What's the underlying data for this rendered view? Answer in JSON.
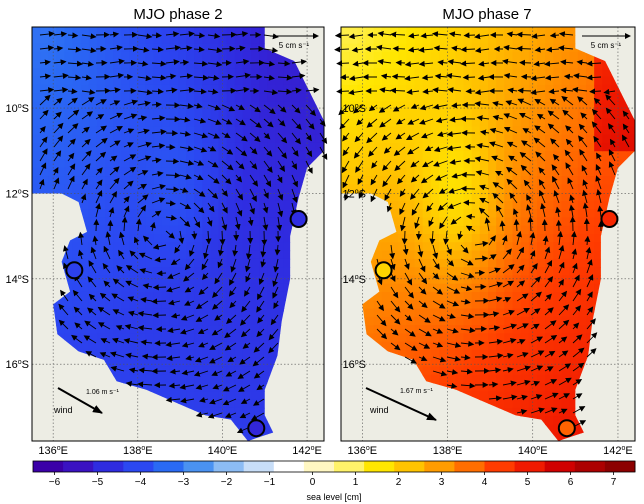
{
  "chart_data": [
    {
      "type": "heatmap",
      "title": "MJO phase 2",
      "x_ticks": [
        {
          "value": 136,
          "label": "136",
          "sup": "o",
          "suffix": "E"
        },
        {
          "value": 138,
          "label": "138",
          "sup": "o",
          "suffix": "E"
        },
        {
          "value": 140,
          "label": "140",
          "sup": "o",
          "suffix": "E"
        },
        {
          "value": 142,
          "label": "142",
          "sup": "o",
          "suffix": "E"
        }
      ],
      "y_ticks": [
        {
          "value": -10,
          "label": "10",
          "sup": "o",
          "suffix": "S"
        },
        {
          "value": -12,
          "label": "12",
          "sup": "o",
          "suffix": "S"
        },
        {
          "value": -14,
          "label": "14",
          "sup": "o",
          "suffix": "S"
        },
        {
          "value": -16,
          "label": "16",
          "sup": "o",
          "suffix": "S"
        }
      ],
      "xlim": [
        135.5,
        142.4
      ],
      "ylim": [
        -17.8,
        -8.1
      ],
      "sea_level_cm_range": [
        -5.5,
        -1.5
      ],
      "velocity_scale_label": "5 cm s⁻¹",
      "wind_label": "wind",
      "wind_speed_label": "1.06 m s⁻¹",
      "wind_vector": {
        "u": 1.0,
        "v": -0.55
      },
      "stations": [
        {
          "lon": 136.5,
          "lat": -13.8,
          "sea_level_cm": -4.5
        },
        {
          "lon": 141.8,
          "lat": -12.6,
          "sea_level_cm": -5.0
        },
        {
          "lon": 140.8,
          "lat": -17.5,
          "sea_level_cm": -5.2
        }
      ]
    },
    {
      "type": "heatmap",
      "title": "MJO phase 7",
      "x_ticks": [
        {
          "value": 136,
          "label": "136",
          "sup": "o",
          "suffix": "E"
        },
        {
          "value": 138,
          "label": "138",
          "sup": "o",
          "suffix": "E"
        },
        {
          "value": 140,
          "label": "140",
          "sup": "o",
          "suffix": "E"
        },
        {
          "value": 142,
          "label": "142",
          "sup": "o",
          "suffix": "E"
        }
      ],
      "y_ticks": [
        {
          "value": -10,
          "label": "10",
          "sup": "o",
          "suffix": "S"
        },
        {
          "value": -12,
          "label": "12",
          "sup": "o",
          "suffix": "S"
        },
        {
          "value": -14,
          "label": "14",
          "sup": "o",
          "suffix": "S"
        },
        {
          "value": -16,
          "label": "16",
          "sup": "o",
          "suffix": "S"
        }
      ],
      "xlim": [
        135.5,
        142.4
      ],
      "ylim": [
        -17.8,
        -8.1
      ],
      "sea_level_cm_range": [
        1,
        6.5
      ],
      "velocity_scale_label": "5 cm s⁻¹",
      "wind_label": "wind",
      "wind_speed_label": "1.67 m s⁻¹",
      "wind_vector": {
        "u": 1.0,
        "v": -0.45
      },
      "stations": [
        {
          "lon": 136.5,
          "lat": -13.8,
          "sea_level_cm": 2.0
        },
        {
          "lon": 141.8,
          "lat": -12.6,
          "sea_level_cm": 5.0
        },
        {
          "lon": 140.8,
          "lat": -17.5,
          "sea_level_cm": 4.0
        }
      ]
    }
  ],
  "colorbar": {
    "label": "sea level [cm]",
    "min": -6.5,
    "max": 7.5,
    "ticks": [
      -6,
      -5,
      -4,
      -3,
      -2,
      -1,
      0,
      1,
      2,
      3,
      4,
      5,
      6,
      7
    ],
    "colors": [
      "#3b00a8",
      "#3a12c2",
      "#2f2ce0",
      "#2b48f2",
      "#2a6af4",
      "#4a92f2",
      "#8cbcf4",
      "#c8def8",
      "#ffffff",
      "#fff7c2",
      "#fff36a",
      "#ffe600",
      "#ffc400",
      "#ff9c00",
      "#ff6e00",
      "#ff3c00",
      "#f01a00",
      "#d00000",
      "#ac0000",
      "#8c0000"
    ]
  },
  "colors": {
    "land": "#edede4",
    "frame": "#000000",
    "grid": "#555555"
  }
}
